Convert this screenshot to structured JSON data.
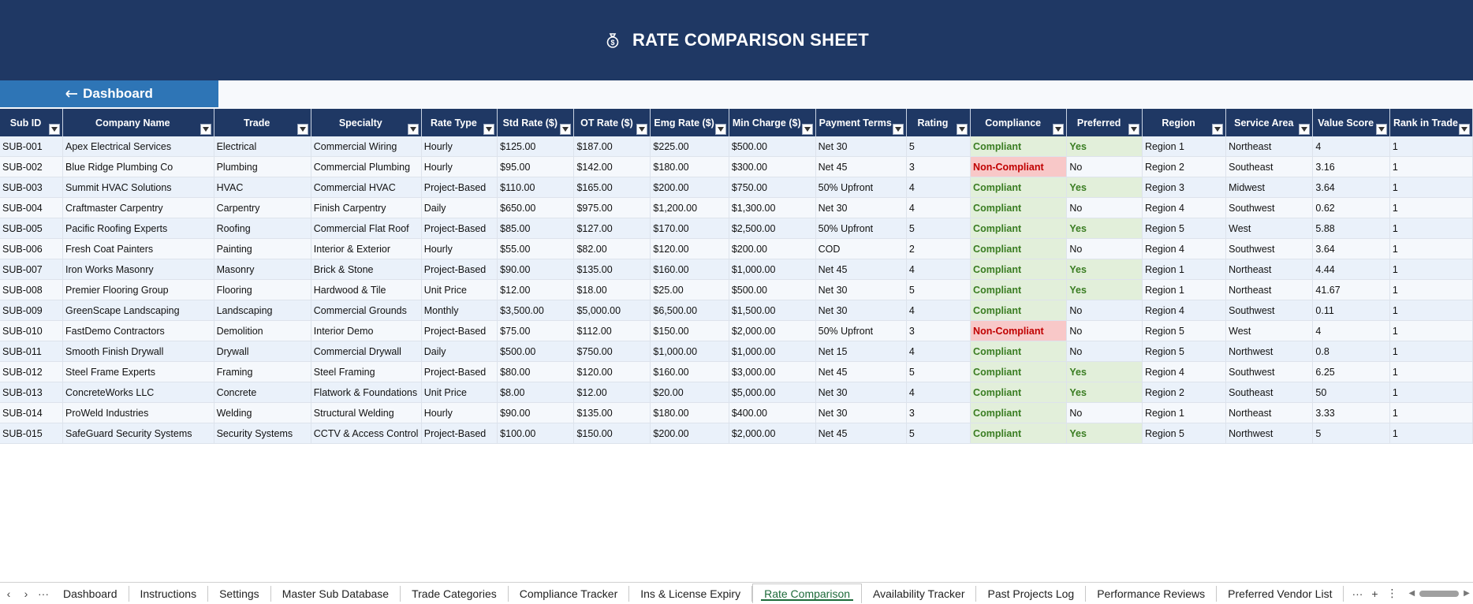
{
  "header": {
    "title": "RATE COMPARISON SHEET",
    "icon": "money-bag-icon"
  },
  "dashboard_button": {
    "label": "Dashboard",
    "icon": "arrow-left-icon"
  },
  "table": {
    "columns": [
      "Sub ID",
      "Company Name",
      "Trade",
      "Specialty",
      "Rate Type",
      "Std Rate ($)",
      "OT Rate ($)",
      "Emg Rate ($)",
      "Min Charge ($)",
      "Payment Terms",
      "Rating",
      "Compliance",
      "Preferred",
      "Region",
      "Service Area",
      "Value Score",
      "Rank in Trade"
    ],
    "rows": [
      [
        "SUB-001",
        "Apex Electrical Services",
        "Electrical",
        "Commercial Wiring",
        "Hourly",
        "$125.00",
        "$187.00",
        "$225.00",
        "$500.00",
        "Net 30",
        "5",
        "Compliant",
        "Yes",
        "Region 1",
        "Northeast",
        "4",
        "1"
      ],
      [
        "SUB-002",
        "Blue Ridge Plumbing Co",
        "Plumbing",
        "Commercial Plumbing",
        "Hourly",
        "$95.00",
        "$142.00",
        "$180.00",
        "$300.00",
        "Net 45",
        "3",
        "Non-Compliant",
        "No",
        "Region 2",
        "Southeast",
        "3.16",
        "1"
      ],
      [
        "SUB-003",
        "Summit HVAC Solutions",
        "HVAC",
        "Commercial HVAC",
        "Project-Based",
        "$110.00",
        "$165.00",
        "$200.00",
        "$750.00",
        "50% Upfront",
        "4",
        "Compliant",
        "Yes",
        "Region 3",
        "Midwest",
        "3.64",
        "1"
      ],
      [
        "SUB-004",
        "Craftmaster Carpentry",
        "Carpentry",
        "Finish Carpentry",
        "Daily",
        "$650.00",
        "$975.00",
        "$1,200.00",
        "$1,300.00",
        "Net 30",
        "4",
        "Compliant",
        "No",
        "Region 4",
        "Southwest",
        "0.62",
        "1"
      ],
      [
        "SUB-005",
        "Pacific Roofing Experts",
        "Roofing",
        "Commercial Flat Roof",
        "Project-Based",
        "$85.00",
        "$127.00",
        "$170.00",
        "$2,500.00",
        "50% Upfront",
        "5",
        "Compliant",
        "Yes",
        "Region 5",
        "West",
        "5.88",
        "1"
      ],
      [
        "SUB-006",
        "Fresh Coat Painters",
        "Painting",
        "Interior & Exterior",
        "Hourly",
        "$55.00",
        "$82.00",
        "$120.00",
        "$200.00",
        "COD",
        "2",
        "Compliant",
        "No",
        "Region 4",
        "Southwest",
        "3.64",
        "1"
      ],
      [
        "SUB-007",
        "Iron Works Masonry",
        "Masonry",
        "Brick & Stone",
        "Project-Based",
        "$90.00",
        "$135.00",
        "$160.00",
        "$1,000.00",
        "Net 45",
        "4",
        "Compliant",
        "Yes",
        "Region 1",
        "Northeast",
        "4.44",
        "1"
      ],
      [
        "SUB-008",
        "Premier Flooring Group",
        "Flooring",
        "Hardwood & Tile",
        "Unit Price",
        "$12.00",
        "$18.00",
        "$25.00",
        "$500.00",
        "Net 30",
        "5",
        "Compliant",
        "Yes",
        "Region 1",
        "Northeast",
        "41.67",
        "1"
      ],
      [
        "SUB-009",
        "GreenScape Landscaping",
        "Landscaping",
        "Commercial Grounds",
        "Monthly",
        "$3,500.00",
        "$5,000.00",
        "$6,500.00",
        "$1,500.00",
        "Net 30",
        "4",
        "Compliant",
        "No",
        "Region 4",
        "Southwest",
        "0.11",
        "1"
      ],
      [
        "SUB-010",
        "FastDemo Contractors",
        "Demolition",
        "Interior Demo",
        "Project-Based",
        "$75.00",
        "$112.00",
        "$150.00",
        "$2,000.00",
        "50% Upfront",
        "3",
        "Non-Compliant",
        "No",
        "Region 5",
        "West",
        "4",
        "1"
      ],
      [
        "SUB-011",
        "Smooth Finish Drywall",
        "Drywall",
        "Commercial Drywall",
        "Daily",
        "$500.00",
        "$750.00",
        "$1,000.00",
        "$1,000.00",
        "Net 15",
        "4",
        "Compliant",
        "No",
        "Region 5",
        "Northwest",
        "0.8",
        "1"
      ],
      [
        "SUB-012",
        "Steel Frame Experts",
        "Framing",
        "Steel Framing",
        "Project-Based",
        "$80.00",
        "$120.00",
        "$160.00",
        "$3,000.00",
        "Net 45",
        "5",
        "Compliant",
        "Yes",
        "Region 4",
        "Southwest",
        "6.25",
        "1"
      ],
      [
        "SUB-013",
        "ConcreteWorks LLC",
        "Concrete",
        "Flatwork & Foundations",
        "Unit Price",
        "$8.00",
        "$12.00",
        "$20.00",
        "$5,000.00",
        "Net 30",
        "4",
        "Compliant",
        "Yes",
        "Region 2",
        "Southeast",
        "50",
        "1"
      ],
      [
        "SUB-014",
        "ProWeld Industries",
        "Welding",
        "Structural Welding",
        "Hourly",
        "$90.00",
        "$135.00",
        "$180.00",
        "$400.00",
        "Net 30",
        "3",
        "Compliant",
        "No",
        "Region 1",
        "Northeast",
        "3.33",
        "1"
      ],
      [
        "SUB-015",
        "SafeGuard Security Systems",
        "Security Systems",
        "CCTV & Access Control",
        "Project-Based",
        "$100.00",
        "$150.00",
        "$200.00",
        "$2,000.00",
        "Net 45",
        "5",
        "Compliant",
        "Yes",
        "Region 5",
        "Northwest",
        "5",
        "1"
      ]
    ]
  },
  "sheet_tabs": [
    "Dashboard",
    "Instructions",
    "Settings",
    "Master Sub Database",
    "Trade Categories",
    "Compliance Tracker",
    "Ins & License Expiry",
    "Rate Comparison",
    "Availability Tracker",
    "Past Projects Log",
    "Performance Reviews",
    "Preferred Vendor List"
  ],
  "active_tab": "Rate Comparison",
  "colors": {
    "header_bg": "#1f3864",
    "button_bg": "#2e75b6",
    "compliant_text": "#3a7d22",
    "compliant_bg": "#e2efda",
    "noncompliant_text": "#c00000",
    "noncompliant_bg": "#f8c8c8",
    "active_tab_accent": "#1e6b3a"
  }
}
